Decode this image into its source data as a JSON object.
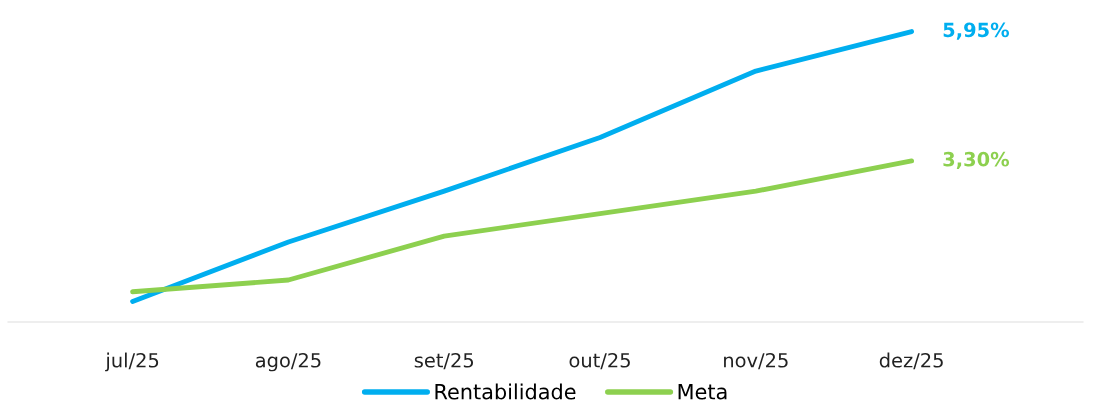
{
  "chart_data": {
    "type": "line",
    "categories": [
      "jul/25",
      "ago/25",
      "set/25",
      "out/25",
      "nov/25",
      "dez/25"
    ],
    "series": [
      {
        "name": "Rentabilidade",
        "color": "#00aeef",
        "values": [
          0.42,
          1.64,
          2.68,
          3.78,
          5.14,
          5.95
        ],
        "value_labels": [
          null,
          null,
          null,
          null,
          null,
          "5,95%"
        ]
      },
      {
        "name": "Meta",
        "color": "#8dd04f",
        "values": [
          0.62,
          0.86,
          1.76,
          2.22,
          2.68,
          3.3
        ],
        "value_labels": [
          null,
          null,
          null,
          null,
          null,
          "3,30%"
        ]
      }
    ],
    "legend": "bottom",
    "grid": false,
    "marker": "none",
    "line_style": "solid",
    "tick_labels": "x"
  }
}
